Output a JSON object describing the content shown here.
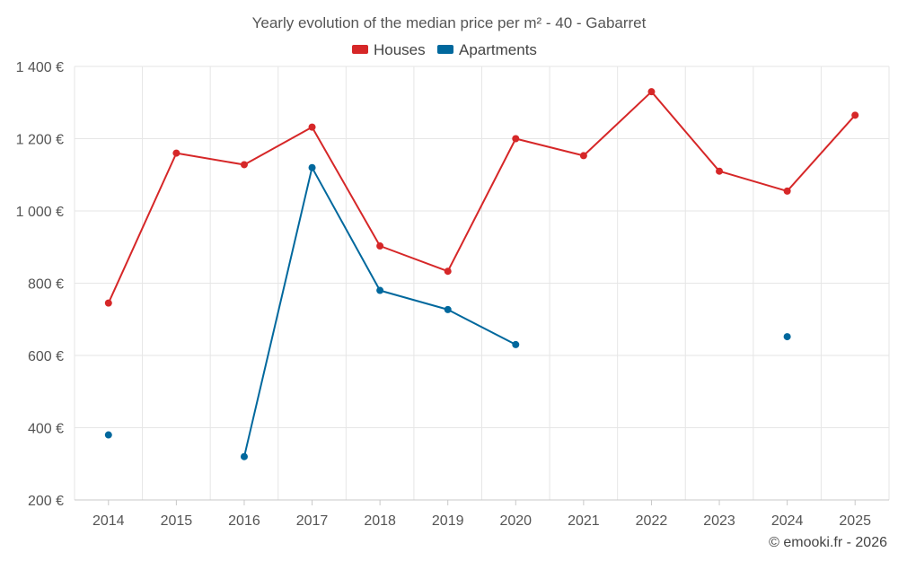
{
  "chart_data": {
    "type": "line",
    "title": "Yearly evolution of the median price per m² - 40 - Gabarret",
    "categories": [
      "2014",
      "2015",
      "2016",
      "2017",
      "2018",
      "2019",
      "2020",
      "2021",
      "2022",
      "2023",
      "2024",
      "2025"
    ],
    "ylim": [
      200,
      1400
    ],
    "yticks": [
      200,
      400,
      600,
      800,
      1000,
      1200,
      1400
    ],
    "ytick_labels": [
      "200 €",
      "400 €",
      "600 €",
      "800 €",
      "1 000 €",
      "1 200 €",
      "1 400 €"
    ],
    "grid": true,
    "legend_position": "top-center",
    "series": [
      {
        "name": "Houses",
        "color": "#d62728",
        "values": [
          745,
          1160,
          1128,
          1232,
          903,
          833,
          1200,
          1153,
          1330,
          1110,
          1055,
          1265
        ]
      },
      {
        "name": "Apartments",
        "color": "#00689d",
        "values": [
          380,
          null,
          320,
          1120,
          780,
          727,
          630,
          null,
          null,
          null,
          652,
          null
        ]
      }
    ]
  },
  "credit": "© emooki.fr - 2026"
}
